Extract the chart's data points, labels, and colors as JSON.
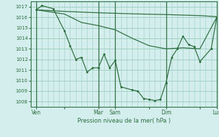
{
  "background_color": "#d4eeee",
  "grid_color": "#99ccbb",
  "line_color": "#2d6e3e",
  "xlabel": "Pression niveau de la mer( hPa )",
  "ylim": [
    1007.5,
    1017.5
  ],
  "yticks": [
    1008,
    1009,
    1010,
    1011,
    1012,
    1013,
    1014,
    1015,
    1016,
    1017
  ],
  "xlim": [
    0,
    33
  ],
  "xtick_labels": [
    "Ven",
    "",
    "Mar",
    "Sam",
    "",
    "Dim",
    "",
    "Lun"
  ],
  "xtick_positions": [
    1,
    6,
    12,
    15,
    21,
    24,
    30,
    33
  ],
  "vlines": [
    1,
    12,
    15,
    24,
    33
  ],
  "line1_x": [
    1,
    2,
    4,
    6,
    7,
    8,
    9,
    10,
    11,
    12,
    13,
    14,
    15,
    16,
    18,
    19,
    20,
    21,
    22,
    23,
    24,
    25,
    26,
    27,
    28,
    29,
    30,
    32,
    33
  ],
  "line1_y": [
    1016.7,
    1017.1,
    1016.8,
    1014.7,
    1013.3,
    1012.0,
    1012.2,
    1010.8,
    1011.2,
    1011.2,
    1012.5,
    1011.2,
    1011.9,
    1009.4,
    1009.1,
    1009.0,
    1008.3,
    1008.2,
    1008.1,
    1008.2,
    1009.8,
    1012.2,
    1013.0,
    1014.2,
    1013.4,
    1013.2,
    1011.8,
    1013.0,
    1016.0
  ],
  "line2_x": [
    1,
    6,
    9,
    12,
    15,
    18,
    21,
    24,
    27,
    30,
    33
  ],
  "line2_y": [
    1016.7,
    1016.3,
    1015.5,
    1015.2,
    1014.8,
    1014.0,
    1013.3,
    1013.0,
    1013.1,
    1013.0,
    1016.0
  ],
  "line3_x": [
    1,
    6,
    12,
    18,
    24,
    30,
    33
  ],
  "line3_y": [
    1016.7,
    1016.55,
    1016.42,
    1016.32,
    1016.25,
    1016.15,
    1016.05
  ]
}
